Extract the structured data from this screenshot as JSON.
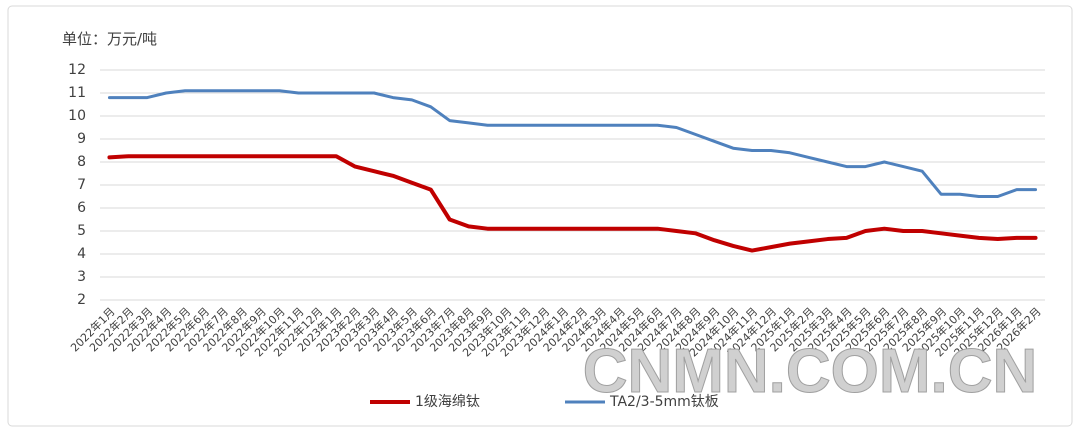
{
  "chart_data": {
    "type": "line",
    "y_label": "单位：万元/吨",
    "categories": [
      "2022年1月",
      "2022年2月",
      "2022年3月",
      "2022年4月",
      "2022年5月",
      "2022年6月",
      "2022年7月",
      "2022年8月",
      "2022年9月",
      "2022年10月",
      "2022年11月",
      "2022年12月",
      "2023年1月",
      "2023年2月",
      "2023年3月",
      "2023年4月",
      "2023年5月",
      "2023年6月",
      "2023年7月",
      "2023年8月",
      "2023年9月",
      "2023年10月",
      "2023年11月",
      "2023年12月",
      "2024年1月",
      "2024年2月",
      "2024年3月",
      "2024年4月",
      "2024年5月",
      "2024年6月",
      "2024年7月",
      "2024年8月",
      "2024年9月",
      "2024年10月",
      "2024年11月",
      "2024年12月",
      "2025年1月",
      "2025年2月",
      "2025年3月",
      "2025年4月",
      "2025年5月",
      "2025年6月",
      "2025年7月",
      "2025年8月",
      "2025年9月",
      "2025年10月",
      "2025年11月",
      "2025年12月",
      "2026年1月",
      "2026年2月"
    ],
    "series": [
      {
        "name": "1级海绵钛",
        "color": "#c00000",
        "width": 4,
        "values": [
          8.2,
          8.25,
          8.25,
          8.25,
          8.25,
          8.25,
          8.25,
          8.25,
          8.25,
          8.25,
          8.25,
          8.25,
          8.25,
          7.8,
          7.6,
          7.4,
          7.1,
          6.8,
          5.5,
          5.2,
          5.1,
          5.1,
          5.1,
          5.1,
          5.1,
          5.1,
          5.1,
          5.1,
          5.1,
          5.1,
          5.0,
          4.9,
          4.6,
          4.35,
          4.15,
          4.3,
          4.45,
          4.55,
          4.65,
          4.7,
          5.0,
          5.1,
          5.0,
          5.0,
          4.9,
          4.8,
          4.7,
          4.65,
          4.7,
          4.7
        ]
      },
      {
        "name": "TA2/3-5mm钛板",
        "color": "#4f81bd",
        "width": 3,
        "values": [
          10.8,
          10.8,
          10.8,
          11.0,
          11.1,
          11.1,
          11.1,
          11.1,
          11.1,
          11.1,
          11.0,
          11.0,
          11.0,
          11.0,
          11.0,
          10.8,
          10.7,
          10.4,
          9.8,
          9.7,
          9.6,
          9.6,
          9.6,
          9.6,
          9.6,
          9.6,
          9.6,
          9.6,
          9.6,
          9.6,
          9.5,
          9.2,
          8.9,
          8.6,
          8.5,
          8.5,
          8.4,
          8.2,
          8.0,
          7.8,
          7.8,
          8.0,
          7.8,
          7.6,
          6.6,
          6.6,
          6.5,
          6.5,
          6.8,
          6.8
        ]
      }
    ],
    "ylim": [
      2,
      12
    ],
    "yticks": [
      2,
      3,
      4,
      5,
      6,
      7,
      8,
      9,
      10,
      11,
      12
    ],
    "grid": true,
    "legend": "bottom",
    "watermark": "CNMN.COM.CN"
  }
}
